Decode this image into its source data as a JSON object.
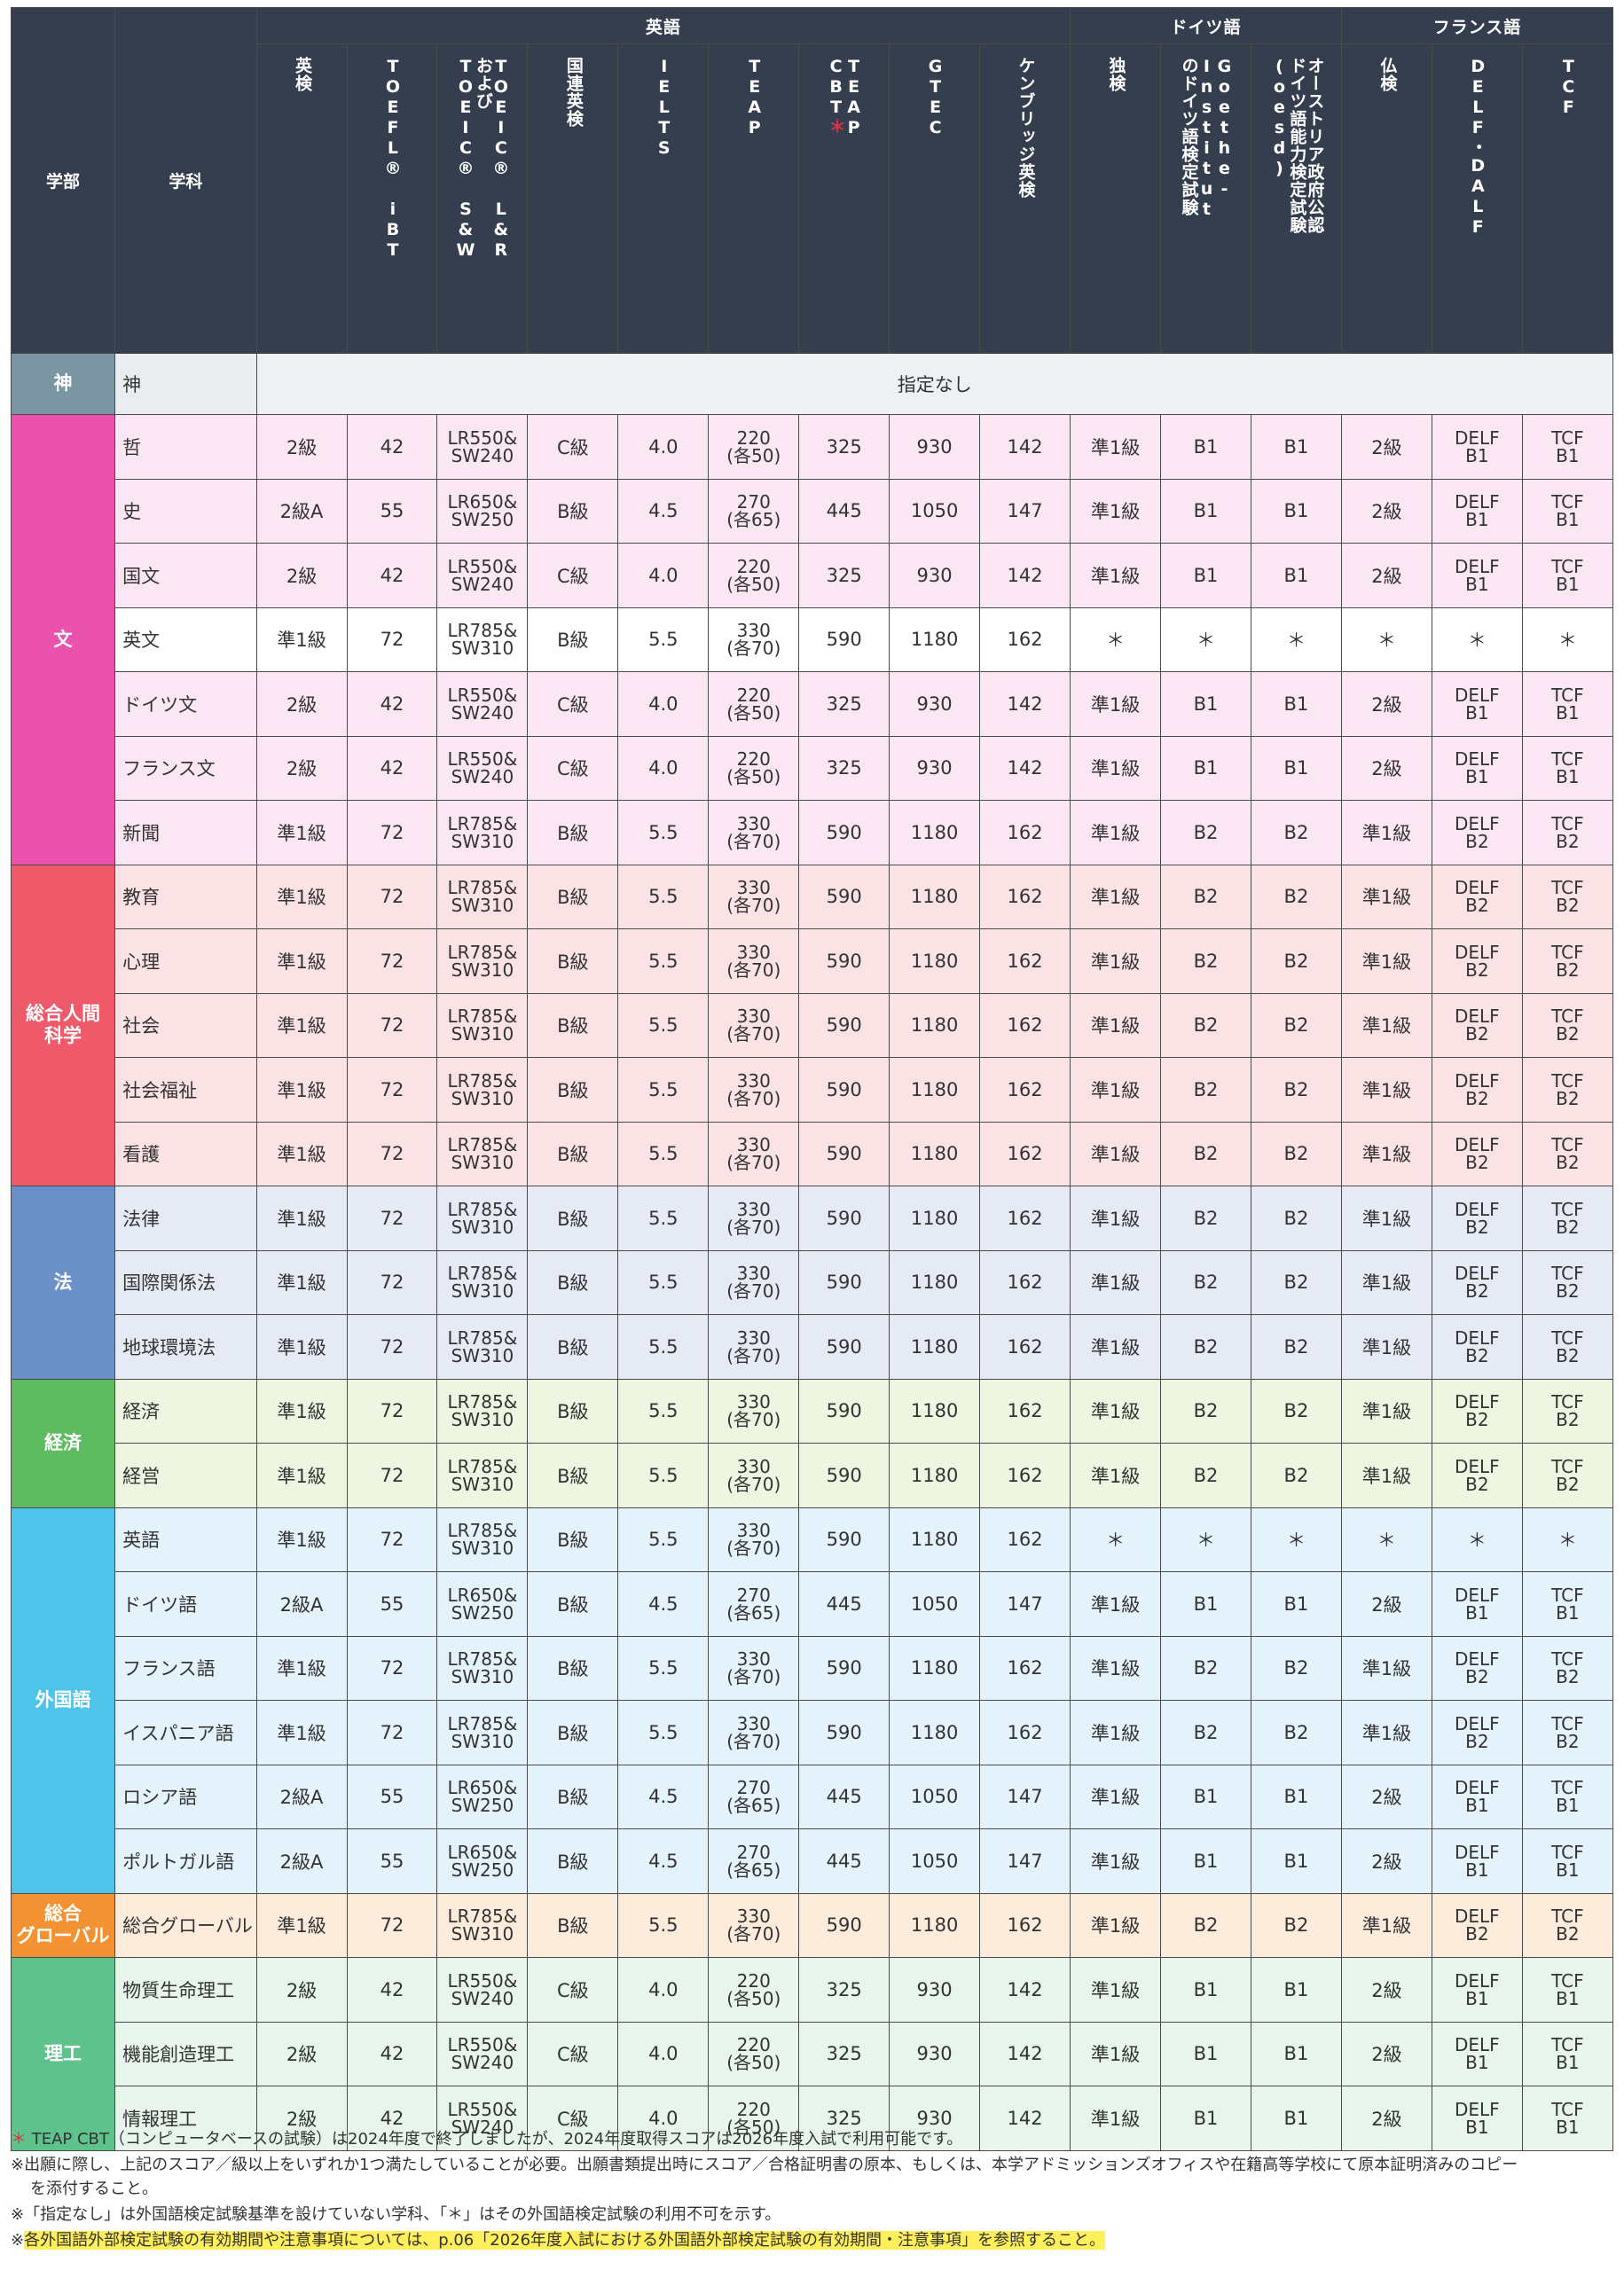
{
  "header": {
    "faculty_label": "学部",
    "department_label": "学科",
    "groups": {
      "english": "英語",
      "german": "ドイツ語",
      "french": "フランス語"
    },
    "columns": [
      "英検",
      "TOEFL® iBT",
      "TOEIC® L&R\nおよび\nTOEIC® S&W",
      "国連英検",
      "IELTS",
      "TEAP",
      "TEAP\nCBT＊",
      "GTEC",
      "ケンブリッジ英検",
      "独検",
      "Goethe-Institut\nのドイツ語検定試験",
      "オーストリア政府公認\nドイツ語能力検定試験(oesd)",
      "仏検",
      "DELF・DALF",
      "TCF"
    ]
  },
  "shin": {
    "faculty": "神",
    "department": "神",
    "note": "指定なし"
  },
  "faculties": [
    {
      "name": "文",
      "color": "#ea52ae",
      "rows": [
        {
          "dept": "哲",
          "v": [
            "2級",
            "42",
            "LR550&\nSW240",
            "C級",
            "4.0",
            "220\n(各50)",
            "325",
            "930",
            "142",
            "準1級",
            "B1",
            "B1",
            "2級",
            "DELF\nB1",
            "TCF\nB1"
          ]
        },
        {
          "dept": "史",
          "v": [
            "2級A",
            "55",
            "LR650&\nSW250",
            "B級",
            "4.5",
            "270\n(各65)",
            "445",
            "1050",
            "147",
            "準1級",
            "B1",
            "B1",
            "2級",
            "DELF\nB1",
            "TCF\nB1"
          ]
        },
        {
          "dept": "国文",
          "v": [
            "2級",
            "42",
            "LR550&\nSW240",
            "C級",
            "4.0",
            "220\n(各50)",
            "325",
            "930",
            "142",
            "準1級",
            "B1",
            "B1",
            "2級",
            "DELF\nB1",
            "TCF\nB1"
          ]
        },
        {
          "dept": "英文",
          "v": [
            "準1級",
            "72",
            "LR785&\nSW310",
            "B級",
            "5.5",
            "330\n(各70)",
            "590",
            "1180",
            "162",
            "＊",
            "＊",
            "＊",
            "＊",
            "＊",
            "＊"
          ]
        },
        {
          "dept": "ドイツ文",
          "v": [
            "2級",
            "42",
            "LR550&\nSW240",
            "C級",
            "4.0",
            "220\n(各50)",
            "325",
            "930",
            "142",
            "準1級",
            "B1",
            "B1",
            "2級",
            "DELF\nB1",
            "TCF\nB1"
          ]
        },
        {
          "dept": "フランス文",
          "v": [
            "2級",
            "42",
            "LR550&\nSW240",
            "C級",
            "4.0",
            "220\n(各50)",
            "325",
            "930",
            "142",
            "準1級",
            "B1",
            "B1",
            "2級",
            "DELF\nB1",
            "TCF\nB1"
          ]
        },
        {
          "dept": "新聞",
          "v": [
            "準1級",
            "72",
            "LR785&\nSW310",
            "B級",
            "5.5",
            "330\n(各70)",
            "590",
            "1180",
            "162",
            "準1級",
            "B2",
            "B2",
            "準1級",
            "DELF\nB2",
            "TCF\nB2"
          ]
        }
      ]
    },
    {
      "name": "総合人間\n科学",
      "color": "#ef5a6a",
      "rows": [
        {
          "dept": "教育",
          "v": [
            "準1級",
            "72",
            "LR785&\nSW310",
            "B級",
            "5.5",
            "330\n(各70)",
            "590",
            "1180",
            "162",
            "準1級",
            "B2",
            "B2",
            "準1級",
            "DELF\nB2",
            "TCF\nB2"
          ]
        },
        {
          "dept": "心理",
          "v": [
            "準1級",
            "72",
            "LR785&\nSW310",
            "B級",
            "5.5",
            "330\n(各70)",
            "590",
            "1180",
            "162",
            "準1級",
            "B2",
            "B2",
            "準1級",
            "DELF\nB2",
            "TCF\nB2"
          ]
        },
        {
          "dept": "社会",
          "v": [
            "準1級",
            "72",
            "LR785&\nSW310",
            "B級",
            "5.5",
            "330\n(各70)",
            "590",
            "1180",
            "162",
            "準1級",
            "B2",
            "B2",
            "準1級",
            "DELF\nB2",
            "TCF\nB2"
          ]
        },
        {
          "dept": "社会福祉",
          "v": [
            "準1級",
            "72",
            "LR785&\nSW310",
            "B級",
            "5.5",
            "330\n(各70)",
            "590",
            "1180",
            "162",
            "準1級",
            "B2",
            "B2",
            "準1級",
            "DELF\nB2",
            "TCF\nB2"
          ]
        },
        {
          "dept": "看護",
          "v": [
            "準1級",
            "72",
            "LR785&\nSW310",
            "B級",
            "5.5",
            "330\n(各70)",
            "590",
            "1180",
            "162",
            "準1級",
            "B2",
            "B2",
            "準1級",
            "DELF\nB2",
            "TCF\nB2"
          ]
        }
      ]
    },
    {
      "name": "法",
      "color": "#6b90c8",
      "rows": [
        {
          "dept": "法律",
          "v": [
            "準1級",
            "72",
            "LR785&\nSW310",
            "B級",
            "5.5",
            "330\n(各70)",
            "590",
            "1180",
            "162",
            "準1級",
            "B2",
            "B2",
            "準1級",
            "DELF\nB2",
            "TCF\nB2"
          ]
        },
        {
          "dept": "国際関係法",
          "v": [
            "準1級",
            "72",
            "LR785&\nSW310",
            "B級",
            "5.5",
            "330\n(各70)",
            "590",
            "1180",
            "162",
            "準1級",
            "B2",
            "B2",
            "準1級",
            "DELF\nB2",
            "TCF\nB2"
          ]
        },
        {
          "dept": "地球環境法",
          "v": [
            "準1級",
            "72",
            "LR785&\nSW310",
            "B級",
            "5.5",
            "330\n(各70)",
            "590",
            "1180",
            "162",
            "準1級",
            "B2",
            "B2",
            "準1級",
            "DELF\nB2",
            "TCF\nB2"
          ]
        }
      ]
    },
    {
      "name": "経済",
      "color": "#5fbb60",
      "rows": [
        {
          "dept": "経済",
          "v": [
            "準1級",
            "72",
            "LR785&\nSW310",
            "B級",
            "5.5",
            "330\n(各70)",
            "590",
            "1180",
            "162",
            "準1級",
            "B2",
            "B2",
            "準1級",
            "DELF\nB2",
            "TCF\nB2"
          ]
        },
        {
          "dept": "経営",
          "v": [
            "準1級",
            "72",
            "LR785&\nSW310",
            "B級",
            "5.5",
            "330\n(各70)",
            "590",
            "1180",
            "162",
            "準1級",
            "B2",
            "B2",
            "準1級",
            "DELF\nB2",
            "TCF\nB2"
          ]
        }
      ]
    },
    {
      "name": "外国語",
      "color": "#4ec4ea",
      "rows": [
        {
          "dept": "英語",
          "v": [
            "準1級",
            "72",
            "LR785&\nSW310",
            "B級",
            "5.5",
            "330\n(各70)",
            "590",
            "1180",
            "162",
            "＊",
            "＊",
            "＊",
            "＊",
            "＊",
            "＊"
          ]
        },
        {
          "dept": "ドイツ語",
          "v": [
            "2級A",
            "55",
            "LR650&\nSW250",
            "B級",
            "4.5",
            "270\n(各65)",
            "445",
            "1050",
            "147",
            "準1級",
            "B1",
            "B1",
            "2級",
            "DELF\nB1",
            "TCF\nB1"
          ]
        },
        {
          "dept": "フランス語",
          "v": [
            "準1級",
            "72",
            "LR785&\nSW310",
            "B級",
            "5.5",
            "330\n(各70)",
            "590",
            "1180",
            "162",
            "準1級",
            "B2",
            "B2",
            "準1級",
            "DELF\nB2",
            "TCF\nB2"
          ]
        },
        {
          "dept": "イスパニア語",
          "v": [
            "準1級",
            "72",
            "LR785&\nSW310",
            "B級",
            "5.5",
            "330\n(各70)",
            "590",
            "1180",
            "162",
            "準1級",
            "B2",
            "B2",
            "準1級",
            "DELF\nB2",
            "TCF\nB2"
          ]
        },
        {
          "dept": "ロシア語",
          "v": [
            "2級A",
            "55",
            "LR650&\nSW250",
            "B級",
            "4.5",
            "270\n(各65)",
            "445",
            "1050",
            "147",
            "準1級",
            "B1",
            "B1",
            "2級",
            "DELF\nB1",
            "TCF\nB1"
          ]
        },
        {
          "dept": "ポルトガル語",
          "v": [
            "2級A",
            "55",
            "LR650&\nSW250",
            "B級",
            "4.5",
            "270\n(各65)",
            "445",
            "1050",
            "147",
            "準1級",
            "B1",
            "B1",
            "2級",
            "DELF\nB1",
            "TCF\nB1"
          ]
        }
      ]
    },
    {
      "name": "総合\nグローバル",
      "color": "#f39232",
      "rows": [
        {
          "dept": "総合グローバル",
          "v": [
            "準1級",
            "72",
            "LR785&\nSW310",
            "B級",
            "5.5",
            "330\n(各70)",
            "590",
            "1180",
            "162",
            "準1級",
            "B2",
            "B2",
            "準1級",
            "DELF\nB2",
            "TCF\nB2"
          ]
        }
      ]
    },
    {
      "name": "理工",
      "color": "#5ec28d",
      "rows": [
        {
          "dept": "物質生命理工",
          "v": [
            "2級",
            "42",
            "LR550&\nSW240",
            "C級",
            "4.0",
            "220\n(各50)",
            "325",
            "930",
            "142",
            "準1級",
            "B1",
            "B1",
            "2級",
            "DELF\nB1",
            "TCF\nB1"
          ]
        },
        {
          "dept": "機能創造理工",
          "v": [
            "2級",
            "42",
            "LR550&\nSW240",
            "C級",
            "4.0",
            "220\n(各50)",
            "325",
            "930",
            "142",
            "準1級",
            "B1",
            "B1",
            "2級",
            "DELF\nB1",
            "TCF\nB1"
          ]
        },
        {
          "dept": "情報理工",
          "v": [
            "2級",
            "42",
            "LR550&\nSW240",
            "C級",
            "4.0",
            "220\n(各50)",
            "325",
            "930",
            "142",
            "準1級",
            "B1",
            "B1",
            "2級",
            "DELF\nB1",
            "TCF\nB1"
          ]
        }
      ]
    }
  ],
  "notes": {
    "n1_mark": "＊",
    "n1": "TEAP CBT（コンピュータベースの試験）は2024年度で終了しましたが、2024年度取得スコアは2026年度入試で利用可能です。",
    "n2": "※出願に際し、上記のスコア／級以上をいずれか1つ満たしていることが必要。出願書類提出時にスコア／合格証明書の原本、もしくは、本学アドミッションズオフィスや在籍高等学校にて原本証明済みのコピー",
    "n2b": "を添付すること。",
    "n3": "※「指定なし」は外国語検定試験基準を設けていない学科、「＊」はその外国語検定試験の利用不可を示す。",
    "n4_mark": "※",
    "n4": "各外国語外部検定試験の有効期間や注意事項については、p.06「2026年度入試における外国語外部検定試験の有効期間・注意事項」を参照すること。"
  }
}
